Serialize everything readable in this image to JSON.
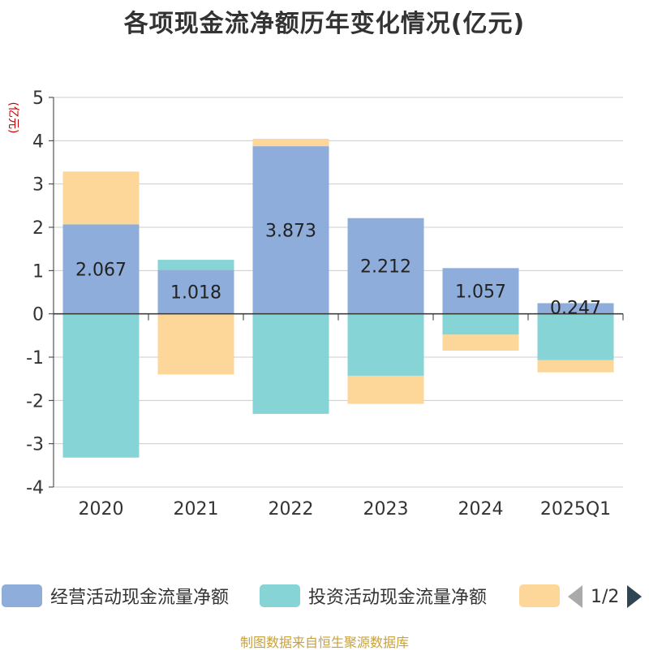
{
  "chart_data": {
    "type": "bar",
    "stacked": true,
    "title": "各项现金流净额历年变化情况(亿元)",
    "ylabel": "(亿元)",
    "xlabel": "",
    "ylim": [
      -4,
      5
    ],
    "yticks": [
      -4,
      -3,
      -2,
      -1,
      0,
      1,
      2,
      3,
      4,
      5
    ],
    "categories": [
      "2020",
      "2021",
      "2022",
      "2023",
      "2024",
      "2025Q1"
    ],
    "series": [
      {
        "name": "经营活动现金流量净额",
        "color": "#8eaddb",
        "values": [
          2.067,
          1.018,
          3.873,
          2.212,
          1.057,
          0.247
        ],
        "show_labels": true
      },
      {
        "name": "投资活动现金流量净额",
        "color": "#86d4d6",
        "values": [
          -3.32,
          0.23,
          -2.31,
          -1.43,
          -0.48,
          -1.07
        ],
        "show_labels": false
      },
      {
        "name": "",
        "color": "#fdd79a",
        "values": [
          1.22,
          -1.4,
          0.17,
          -0.65,
          -0.37,
          -0.28
        ],
        "show_labels": false
      }
    ],
    "data_labels": [
      "2.067",
      "1.018",
      "3.873",
      "2.212",
      "1.057",
      "0.247"
    ]
  },
  "legend": {
    "items": [
      {
        "label": "经营活动现金流量净额",
        "color": "#8eaddb"
      },
      {
        "label": "投资活动现金流量净额",
        "color": "#86d4d6"
      },
      {
        "label": "",
        "color": "#fdd79a"
      }
    ],
    "page": "1/2"
  },
  "source": "制图数据来自恒生聚源数据库"
}
